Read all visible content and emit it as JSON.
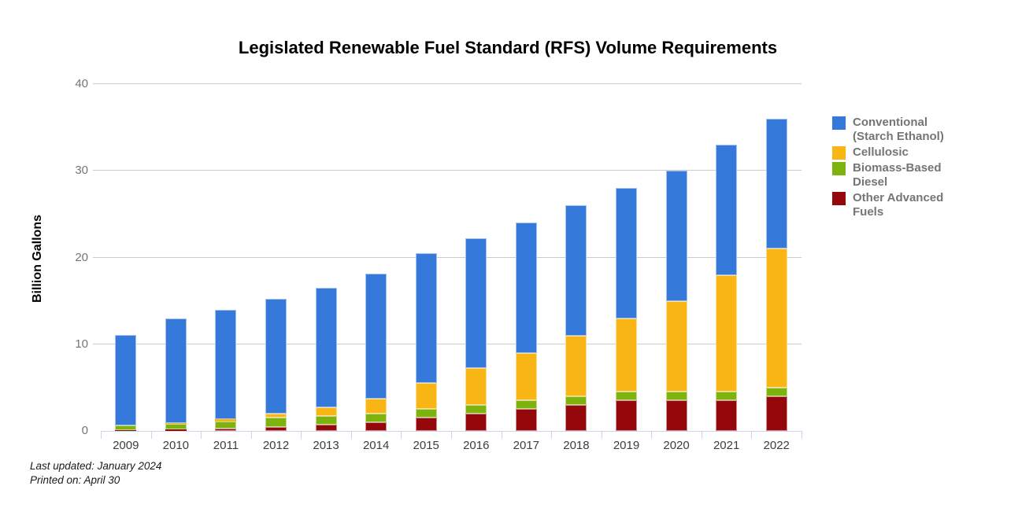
{
  "chart_data": {
    "type": "bar",
    "stacked": true,
    "title": "Legislated Renewable Fuel Standard (RFS) Volume Requirements",
    "xlabel": "",
    "ylabel": "Billion Gallons",
    "ylim": [
      0,
      40
    ],
    "yticks": [
      0,
      10,
      20,
      30,
      40
    ],
    "grid": true,
    "legend_position": "right",
    "categories": [
      "2009",
      "2010",
      "2011",
      "2012",
      "2013",
      "2014",
      "2015",
      "2016",
      "2017",
      "2018",
      "2019",
      "2020",
      "2021",
      "2022"
    ],
    "series": [
      {
        "name": "Conventional (Starch Ethanol)",
        "color": "#3579DB",
        "values": [
          10.5,
          12.0,
          12.6,
          13.2,
          13.8,
          14.4,
          15.0,
          15.0,
          15.0,
          15.0,
          15.0,
          15.0,
          15.0,
          15.0
        ]
      },
      {
        "name": "Cellulosic",
        "color": "#F8B513",
        "values": [
          0,
          0.1,
          0.25,
          0.5,
          1.0,
          1.75,
          3.0,
          4.25,
          5.5,
          7.0,
          8.5,
          10.5,
          13.5,
          16.0
        ]
      },
      {
        "name": "Biomass-Based Diesel",
        "color": "#7EB30D",
        "values": [
          0.5,
          0.65,
          0.8,
          1.0,
          1.0,
          1.0,
          1.0,
          1.0,
          1.0,
          1.0,
          1.0,
          1.0,
          1.0,
          1.0
        ]
      },
      {
        "name": "Other Advanced Fuels",
        "color": "#94070A",
        "values": [
          0.1,
          0.2,
          0.3,
          0.5,
          0.75,
          1.0,
          1.5,
          2.0,
          2.5,
          3.0,
          3.5,
          3.5,
          3.5,
          4.0
        ]
      }
    ],
    "stack_order_note": "series drawn bottom-to-top: Other Advanced Fuels, Biomass-Based Diesel, Cellulosic, Conventional",
    "totals": [
      11.1,
      12.95,
      13.95,
      15.2,
      16.55,
      18.15,
      20.5,
      22.25,
      24.0,
      26.0,
      28.0,
      30.0,
      33.0,
      36.0
    ]
  },
  "footer": {
    "last_updated": "Last updated: January 2024",
    "printed_on": "Printed on: April 30"
  },
  "styles": {
    "grid_color": "#cccccc",
    "axis_color": "#ccd6e8",
    "y_tick_text_color": "#757575",
    "x_tick_text_color": "#3d3d3d",
    "legend_text_color": "#757575",
    "segment_stroke": "rgba(255,255,255,0.55)"
  }
}
